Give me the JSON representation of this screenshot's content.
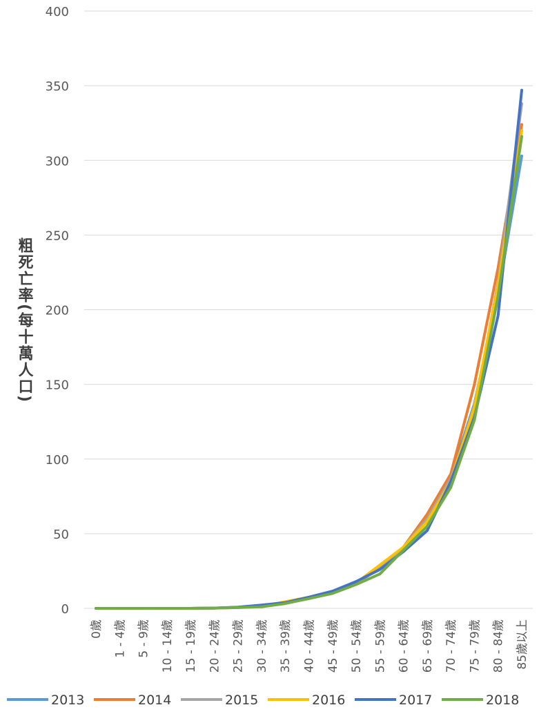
{
  "chart_data": {
    "type": "line",
    "ylabel": "粗死亡率(每十萬人口)",
    "xlabel": "",
    "ylim": [
      0,
      400
    ],
    "yticks": [
      0,
      50,
      100,
      150,
      200,
      250,
      300,
      350,
      400
    ],
    "grid": true,
    "legend_position": "bottom",
    "categories": [
      "0歲",
      "1 - 4歲",
      "5 - 9歲",
      "10 - 14歲",
      "15 - 19歲",
      "20 - 24歲",
      "25 - 29歲",
      "30 - 34歲",
      "35 - 39歲",
      "40 - 44歲",
      "45 - 49歲",
      "50 - 54歲",
      "55 - 59歲",
      "60 - 64歲",
      "65 - 69歲",
      "70 - 74歲",
      "75 - 79歲",
      "80 - 84歲",
      "85歲以上"
    ],
    "series": [
      {
        "name": "2013",
        "color": "#5B9BD5",
        "values": [
          0,
          0,
          0,
          0,
          0,
          0.2,
          0.7,
          1.8,
          4,
          7,
          11,
          17.5,
          27,
          40,
          62,
          88,
          137,
          210,
          303
        ]
      },
      {
        "name": "2014",
        "color": "#ED7D31",
        "values": [
          0,
          0,
          0,
          0,
          0,
          0.2,
          0.6,
          1.5,
          3.8,
          7,
          11,
          17,
          27,
          41,
          63,
          90,
          150,
          228,
          324
        ]
      },
      {
        "name": "2015",
        "color": "#A5A5A5",
        "values": [
          0,
          0,
          0,
          0,
          0,
          0.2,
          0.6,
          1.5,
          3.6,
          7,
          11,
          16.5,
          27,
          41,
          60,
          87,
          132,
          218,
          338
        ]
      },
      {
        "name": "2016",
        "color": "#FFC000",
        "values": [
          0,
          0,
          0,
          0,
          0,
          0.2,
          0.5,
          1.3,
          4.5,
          7.5,
          11,
          17,
          29,
          41,
          58,
          85,
          135,
          216,
          320
        ]
      },
      {
        "name": "2017",
        "color": "#4472C4",
        "values": [
          0,
          0,
          0,
          0,
          0,
          0.2,
          0.8,
          2.2,
          3.8,
          7.5,
          11.5,
          18,
          26,
          38,
          52,
          85,
          128,
          196,
          347
        ]
      },
      {
        "name": "2018",
        "color": "#70AD47",
        "values": [
          0,
          0,
          0,
          0,
          0,
          0.2,
          0.5,
          1.0,
          3.2,
          6.5,
          10,
          16,
          23,
          39,
          55,
          81,
          126,
          209,
          316
        ]
      }
    ]
  }
}
